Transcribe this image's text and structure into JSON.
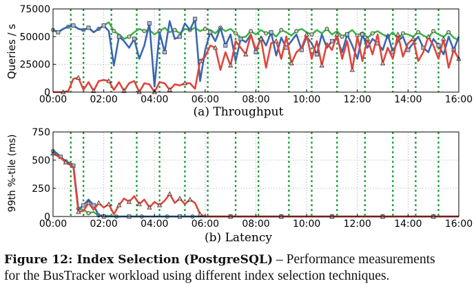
{
  "figure_caption": {
    "label": "Figure 12: Index Selection (PostgreSQL)",
    "text_line1": " – Performance measurements",
    "text_line2": "for the BusTracker workload using different index selection techniques."
  },
  "chart_data": [
    {
      "type": "line",
      "title": "",
      "subcaption": "(a) Throughput",
      "ylabel": "Queries / s",
      "xlabel": "",
      "ylim": [
        0,
        75000
      ],
      "xlim": [
        0,
        16
      ],
      "ytick_labels": [
        "0",
        "25000",
        "50000",
        "75000"
      ],
      "yticks": [
        0,
        25000,
        50000,
        75000
      ],
      "xtick_labels": [
        "00:00",
        "02:00",
        "04:00",
        "06:00",
        "08:00",
        "10:00",
        "12:00",
        "14:00",
        "16:00"
      ],
      "xticks": [
        0,
        2,
        4,
        6,
        8,
        10,
        12,
        14,
        16
      ],
      "vertical_lines_hours": [
        0.7,
        1.2,
        2.3,
        3.3,
        4.2,
        5.2,
        6.1,
        7.2,
        8.1,
        9.3,
        10.2,
        11.2,
        12.3,
        13.4,
        14.3,
        15.2
      ],
      "grid": true,
      "colors": {
        "green": "#3db24a",
        "blue": "#3a66b0",
        "red": "#e0443b",
        "vline": "#23a23a"
      },
      "series": [
        {
          "color": "#3db24a",
          "marker": "circle",
          "x": [
            0,
            0.2,
            0.4,
            0.6,
            0.8,
            1.0,
            1.2,
            1.4,
            1.6,
            1.8,
            2.0,
            2.2,
            2.4,
            2.6,
            2.8,
            3.0,
            3.2,
            3.4,
            3.6,
            3.8,
            4.0,
            4.2,
            4.4,
            4.6,
            4.8,
            5.0,
            5.2,
            5.4,
            5.6,
            5.8,
            6.0,
            6.2,
            6.4,
            6.6,
            6.8,
            7.0,
            7.2,
            7.4,
            7.6,
            7.8,
            8.0,
            8.2,
            8.4,
            8.6,
            8.8,
            9.0,
            9.2,
            9.4,
            9.6,
            9.8,
            10.0,
            10.2,
            10.4,
            10.6,
            10.8,
            11.0,
            11.2,
            11.4,
            11.6,
            11.8,
            12.0,
            12.2,
            12.4,
            12.6,
            12.8,
            13.0,
            13.2,
            13.4,
            13.6,
            13.8,
            14.0,
            14.2,
            14.4,
            14.6,
            14.8,
            15.0,
            15.2,
            15.4,
            15.6,
            15.8,
            16.0
          ],
          "y": [
            56000,
            54000,
            57000,
            59000,
            60000,
            57000,
            56000,
            58000,
            54000,
            57000,
            60000,
            63000,
            55000,
            52000,
            48000,
            50000,
            54000,
            57000,
            55000,
            56000,
            52000,
            55000,
            58000,
            54000,
            56000,
            53000,
            57000,
            56000,
            58000,
            55000,
            57000,
            56000,
            53000,
            58000,
            55000,
            57000,
            53000,
            49000,
            50000,
            55000,
            52000,
            56000,
            53000,
            54000,
            50000,
            56000,
            54000,
            51000,
            55000,
            57000,
            54000,
            52000,
            56000,
            53000,
            57000,
            52000,
            55000,
            50000,
            53000,
            56000,
            51000,
            54000,
            49000,
            53000,
            55000,
            52000,
            50000,
            54000,
            48000,
            53000,
            52000,
            50000,
            54000,
            51000,
            49000,
            55000,
            52000,
            50000,
            54000,
            49000,
            47000
          ]
        },
        {
          "color": "#3a66b0",
          "marker": "square",
          "x": [
            0,
            0.2,
            0.4,
            0.6,
            0.8,
            1.0,
            1.2,
            1.4,
            1.6,
            1.8,
            2.0,
            2.2,
            2.4,
            2.6,
            2.8,
            3.0,
            3.2,
            3.4,
            3.6,
            3.8,
            4.0,
            4.2,
            4.4,
            4.6,
            4.8,
            5.0,
            5.2,
            5.4,
            5.6,
            5.8,
            6.0,
            6.2,
            6.4,
            6.6,
            6.8,
            7.0,
            7.2,
            7.4,
            7.6,
            7.8,
            8.0,
            8.2,
            8.4,
            8.6,
            8.8,
            9.0,
            9.2,
            9.4,
            9.6,
            9.8,
            10.0,
            10.2,
            10.4,
            10.6,
            10.8,
            11.0,
            11.2,
            11.4,
            11.6,
            11.8,
            12.0,
            12.2,
            12.4,
            12.6,
            12.8,
            13.0,
            13.2,
            13.4,
            13.6,
            13.8,
            14.0,
            14.2,
            14.4,
            14.6,
            14.8,
            15.0,
            15.2,
            15.4,
            15.6,
            15.8,
            16.0
          ],
          "y": [
            56000,
            54000,
            57000,
            59000,
            60000,
            57000,
            56000,
            58000,
            54000,
            57000,
            60000,
            55000,
            24000,
            50000,
            46000,
            40000,
            48000,
            30000,
            42000,
            62000,
            5000,
            54000,
            36000,
            64000,
            48000,
            50000,
            62000,
            56000,
            66000,
            10000,
            38000,
            54000,
            46000,
            58000,
            42000,
            52000,
            28000,
            48000,
            45000,
            52000,
            36000,
            50000,
            42000,
            54000,
            33000,
            49000,
            40000,
            46000,
            52000,
            38000,
            50000,
            44000,
            34000,
            52000,
            40000,
            46000,
            48000,
            36000,
            52000,
            42000,
            30000,
            52000,
            40000,
            48000,
            44000,
            38000,
            52000,
            36000,
            46000,
            50000,
            38000,
            44000,
            50000,
            40000,
            36000,
            48000,
            42000,
            34000,
            50000,
            38000,
            50000
          ]
        },
        {
          "color": "#e0443b",
          "marker": "triangle",
          "x": [
            0,
            0.2,
            0.4,
            0.6,
            0.8,
            1.0,
            1.2,
            1.4,
            1.6,
            1.8,
            2.0,
            2.2,
            2.4,
            2.6,
            2.8,
            3.0,
            3.2,
            3.4,
            3.6,
            3.8,
            4.0,
            4.2,
            4.4,
            4.6,
            4.8,
            5.0,
            5.2,
            5.4,
            5.6,
            5.8,
            6.0,
            6.2,
            6.4,
            6.6,
            6.8,
            7.0,
            7.2,
            7.4,
            7.6,
            7.8,
            8.0,
            8.2,
            8.4,
            8.6,
            8.8,
            9.0,
            9.2,
            9.4,
            9.6,
            9.8,
            10.0,
            10.2,
            10.4,
            10.6,
            10.8,
            11.0,
            11.2,
            11.4,
            11.6,
            11.8,
            12.0,
            12.2,
            12.4,
            12.6,
            12.8,
            13.0,
            13.2,
            13.4,
            13.6,
            13.8,
            14.0,
            14.2,
            14.4,
            14.6,
            14.8,
            15.0,
            15.2,
            15.4,
            15.6,
            15.8,
            16.0
          ],
          "y": [
            0,
            0,
            0,
            1000,
            12000,
            13000,
            2000,
            9000,
            1000,
            10000,
            11000,
            10000,
            2000,
            9000,
            1000,
            8000,
            10000,
            0,
            8000,
            7000,
            0,
            9000,
            8000,
            2000,
            7000,
            6000,
            8000,
            8000,
            3000,
            28000,
            32000,
            42000,
            40000,
            20000,
            36000,
            24000,
            46000,
            40000,
            34000,
            52000,
            38000,
            48000,
            22000,
            44000,
            46000,
            30000,
            50000,
            26000,
            36000,
            40000,
            52000,
            30000,
            46000,
            24000,
            44000,
            38000,
            52000,
            30000,
            46000,
            20000,
            50000,
            28000,
            48000,
            34000,
            52000,
            26000,
            40000,
            30000,
            52000,
            32000,
            44000,
            48000,
            28000,
            36000,
            50000,
            42000,
            30000,
            48000,
            22000,
            38000,
            30000
          ]
        }
      ]
    },
    {
      "type": "line",
      "title": "",
      "subcaption": "(b) Latency",
      "ylabel": "99th %-tile (ms)",
      "xlabel": "",
      "ylim": [
        0,
        750
      ],
      "xlim": [
        0,
        16
      ],
      "ytick_labels": [
        "0",
        "250",
        "500",
        "750"
      ],
      "yticks": [
        0,
        250,
        500,
        750
      ],
      "xtick_labels": [
        "00:00",
        "02:00",
        "04:00",
        "06:00",
        "08:00",
        "10:00",
        "12:00",
        "14:00",
        "16:00"
      ],
      "xticks": [
        0,
        2,
        4,
        6,
        8,
        10,
        12,
        14,
        16
      ],
      "vertical_lines_hours": [
        0.7,
        1.2,
        2.3,
        3.3,
        4.2,
        5.2,
        6.1,
        7.2,
        8.1,
        9.3,
        10.2,
        11.2,
        12.3,
        13.4,
        14.3,
        15.2
      ],
      "grid": true,
      "series": [
        {
          "color": "#3db24a",
          "marker": "circle",
          "x": [
            0,
            0.3,
            0.5,
            0.8,
            1.0,
            1.2,
            1.4,
            1.6,
            1.8,
            2.0,
            2.5,
            3.0,
            3.5,
            4.0,
            4.5,
            5.0,
            5.5,
            6.0,
            7.0,
            8.0,
            9.0,
            10.0,
            11.0,
            12.0,
            13.0,
            14.0,
            15.0,
            16.0
          ],
          "y": [
            580,
            520,
            490,
            460,
            70,
            60,
            30,
            40,
            10,
            10,
            0,
            0,
            0,
            0,
            0,
            0,
            0,
            0,
            0,
            0,
            0,
            0,
            0,
            0,
            0,
            0,
            0,
            0
          ]
        },
        {
          "color": "#3a66b0",
          "marker": "square",
          "x": [
            0,
            0.3,
            0.5,
            0.8,
            1.0,
            1.2,
            1.4,
            1.6,
            1.8,
            2.0,
            2.5,
            3.0,
            4.0,
            5.0,
            6.0,
            7.0,
            8.0,
            9.0,
            10.0,
            11.0,
            12.0,
            13.0,
            14.0,
            15.0,
            16.0
          ],
          "y": [
            590,
            530,
            490,
            450,
            60,
            100,
            150,
            100,
            10,
            0,
            0,
            0,
            0,
            0,
            0,
            0,
            0,
            0,
            0,
            0,
            0,
            0,
            0,
            0,
            0
          ]
        },
        {
          "color": "#e0443b",
          "marker": "triangle",
          "x": [
            0,
            0.3,
            0.5,
            0.8,
            1.0,
            1.2,
            1.4,
            1.6,
            1.8,
            2.0,
            2.2,
            2.4,
            2.6,
            2.8,
            3.0,
            3.2,
            3.4,
            3.6,
            3.8,
            4.0,
            4.2,
            4.4,
            4.6,
            4.8,
            5.0,
            5.2,
            5.4,
            5.6,
            5.8,
            6.0,
            7.0,
            8.0,
            9.0,
            10.0,
            11.0,
            12.0,
            13.0,
            14.0,
            15.0,
            16.0
          ],
          "y": [
            560,
            520,
            480,
            440,
            40,
            50,
            120,
            60,
            120,
            80,
            110,
            20,
            100,
            160,
            130,
            180,
            110,
            150,
            80,
            130,
            100,
            140,
            200,
            120,
            160,
            110,
            150,
            120,
            20,
            0,
            0,
            0,
            0,
            0,
            0,
            0,
            0,
            0,
            0,
            0
          ]
        }
      ]
    }
  ]
}
